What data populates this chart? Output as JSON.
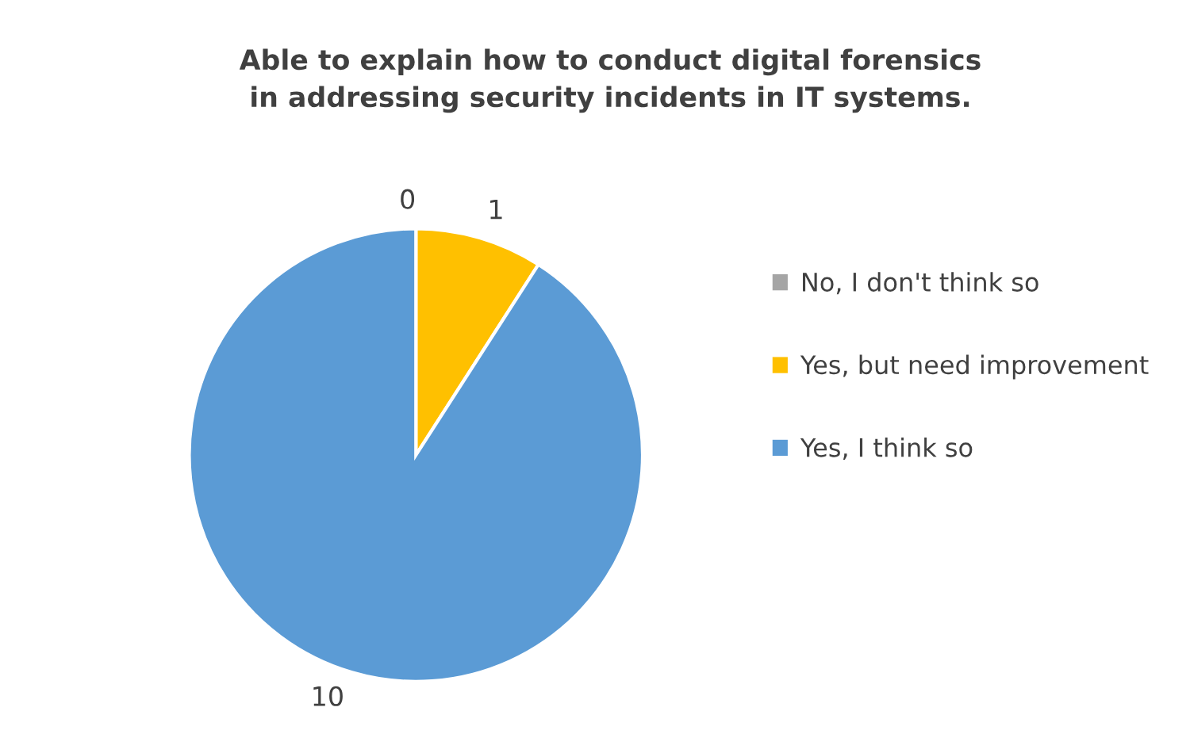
{
  "chart_data": {
    "type": "pie",
    "title": "Able to explain how to conduct digital forensics in addressing security incidents in IT systems.",
    "categories": [
      "No, I don't think so",
      "Yes, but need improvement",
      "Yes, I think so"
    ],
    "values": [
      0,
      1,
      10
    ],
    "colors": [
      "#a5a5a5",
      "#ffc000",
      "#5b9bd5"
    ],
    "value_labels": [
      "0",
      "1",
      "10"
    ],
    "legend": "right"
  }
}
